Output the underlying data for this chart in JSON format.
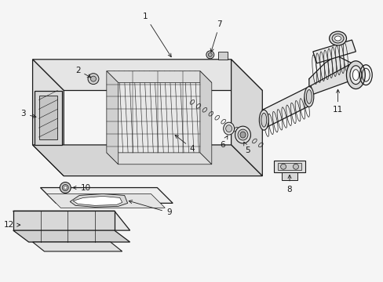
{
  "background_color": "#f5f5f5",
  "line_color": "#1a1a1a",
  "figsize": [
    4.89,
    3.6
  ],
  "dpi": 100,
  "box_fill": "#e8e8e8",
  "box_fill2": "#d5d5d5",
  "box_fill3": "#ececec",
  "white": "#ffffff",
  "gray_light": "#e0e0e0",
  "gray_med": "#c8c8c8",
  "gray_dark": "#b0b0b0"
}
